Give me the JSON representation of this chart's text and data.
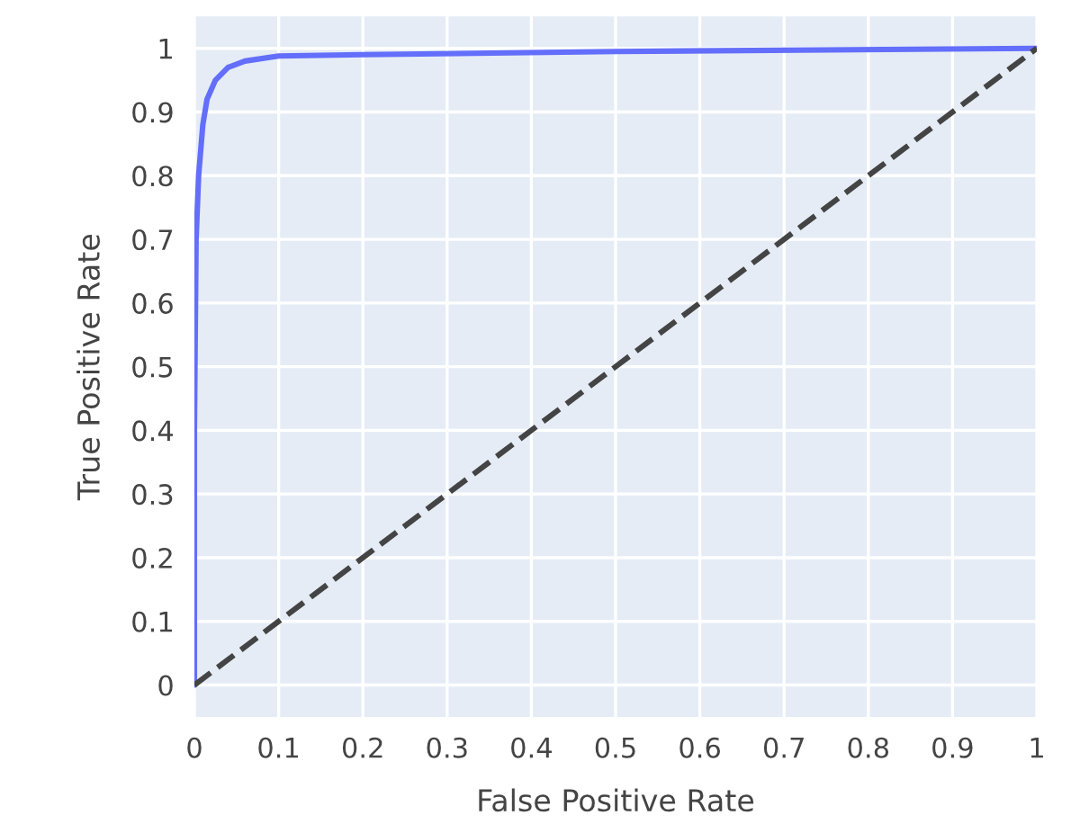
{
  "chart_data": {
    "type": "line",
    "xlabel": "False Positive Rate",
    "ylabel": "True Positive Rate",
    "series": [
      {
        "color": "#636efa",
        "line_style": "solid",
        "x": [
          0,
          0,
          0.002,
          0.005,
          0.01,
          0.015,
          0.025,
          0.04,
          0.06,
          0.1,
          0.2,
          0.5,
          1
        ],
        "values": [
          0,
          0.4,
          0.7,
          0.8,
          0.88,
          0.92,
          0.95,
          0.97,
          0.98,
          0.988,
          0.99,
          0.995,
          1
        ]
      },
      {
        "color": "#444444",
        "line_style": "dashed",
        "x": [
          0,
          1
        ],
        "values": [
          0,
          1
        ]
      }
    ],
    "xlim": [
      0,
      1
    ],
    "ylim": [
      -0.05,
      1.05
    ],
    "xticks": [
      0,
      0.1,
      0.2,
      0.3,
      0.4,
      0.5,
      0.6,
      0.7,
      0.8,
      0.9,
      1
    ],
    "yticks": [
      0,
      0.1,
      0.2,
      0.3,
      0.4,
      0.5,
      0.6,
      0.7,
      0.8,
      0.9,
      1
    ],
    "grid": true
  }
}
